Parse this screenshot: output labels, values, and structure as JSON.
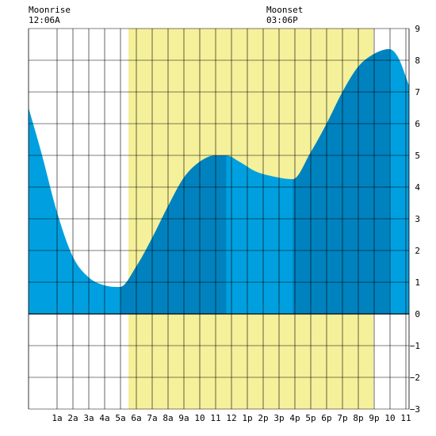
{
  "moonrise": {
    "label": "Moonrise",
    "time": "12:06A",
    "hour": 0.1
  },
  "moonset": {
    "label": "Moonset",
    "time": "03:06P",
    "hour": 15.1
  },
  "colors": {
    "daylight": "#f5f09a",
    "tide_light": "#00a0e0",
    "tide_dark": "#0082bf",
    "grid": "#000000",
    "background": "#ffffff"
  },
  "chart_data": {
    "type": "area",
    "title": "",
    "xlabel": "",
    "ylabel": "",
    "xlim": [
      -0.8,
      23.2
    ],
    "ylim": [
      -3,
      9
    ],
    "grid": true,
    "daylight": {
      "start_hour": 5.5,
      "end_hour": 20.95
    },
    "shade_bands": [
      {
        "start_hour": 5.0,
        "end_hour": 11.67
      },
      {
        "start_hour": 15.87,
        "end_hour": 21.95
      }
    ],
    "x_ticks": [
      {
        "hour": 1,
        "label": "1a"
      },
      {
        "hour": 2,
        "label": "2a"
      },
      {
        "hour": 3,
        "label": "3a"
      },
      {
        "hour": 4,
        "label": "4a"
      },
      {
        "hour": 5,
        "label": "5a"
      },
      {
        "hour": 6,
        "label": "6a"
      },
      {
        "hour": 7,
        "label": "7a"
      },
      {
        "hour": 8,
        "label": "8a"
      },
      {
        "hour": 9,
        "label": "9a"
      },
      {
        "hour": 10,
        "label": "10"
      },
      {
        "hour": 11,
        "label": "11"
      },
      {
        "hour": 12,
        "label": "12"
      },
      {
        "hour": 13,
        "label": "1p"
      },
      {
        "hour": 14,
        "label": "2p"
      },
      {
        "hour": 15,
        "label": "3p"
      },
      {
        "hour": 16,
        "label": "4p"
      },
      {
        "hour": 17,
        "label": "5p"
      },
      {
        "hour": 18,
        "label": "6p"
      },
      {
        "hour": 19,
        "label": "7p"
      },
      {
        "hour": 20,
        "label": "8p"
      },
      {
        "hour": 21,
        "label": "9p"
      },
      {
        "hour": 22,
        "label": "10"
      },
      {
        "hour": 23,
        "label": "11"
      }
    ],
    "y_ticks": [
      9,
      8,
      7,
      6,
      5,
      4,
      3,
      2,
      1,
      0,
      -1,
      -2,
      -3
    ],
    "extremes": [
      {
        "hour": 4.97,
        "height": 0.85,
        "type": "low"
      },
      {
        "hour": 11.67,
        "height": 5.0,
        "type": "high"
      },
      {
        "hour": 15.87,
        "height": 4.25,
        "type": "low"
      },
      {
        "hour": 21.95,
        "height": 8.35,
        "type": "high"
      }
    ],
    "series": [
      {
        "points": [
          [
            -0.8,
            6.5
          ],
          [
            0,
            5.1
          ],
          [
            1,
            3.2
          ],
          [
            2,
            1.8
          ],
          [
            3,
            1.15
          ],
          [
            4,
            0.9
          ],
          [
            4.97,
            0.85
          ],
          [
            6,
            1.5
          ],
          [
            7,
            2.4
          ],
          [
            8,
            3.4
          ],
          [
            9,
            4.3
          ],
          [
            10,
            4.8
          ],
          [
            11,
            5.0
          ],
          [
            11.67,
            5.0
          ],
          [
            12.5,
            4.8
          ],
          [
            13.5,
            4.5
          ],
          [
            14.5,
            4.35
          ],
          [
            15.87,
            4.25
          ],
          [
            17,
            5.1
          ],
          [
            18,
            6.0
          ],
          [
            19,
            7.0
          ],
          [
            20,
            7.8
          ],
          [
            21,
            8.2
          ],
          [
            21.95,
            8.35
          ],
          [
            22.5,
            8.1
          ],
          [
            23.2,
            7.2
          ]
        ]
      }
    ]
  }
}
